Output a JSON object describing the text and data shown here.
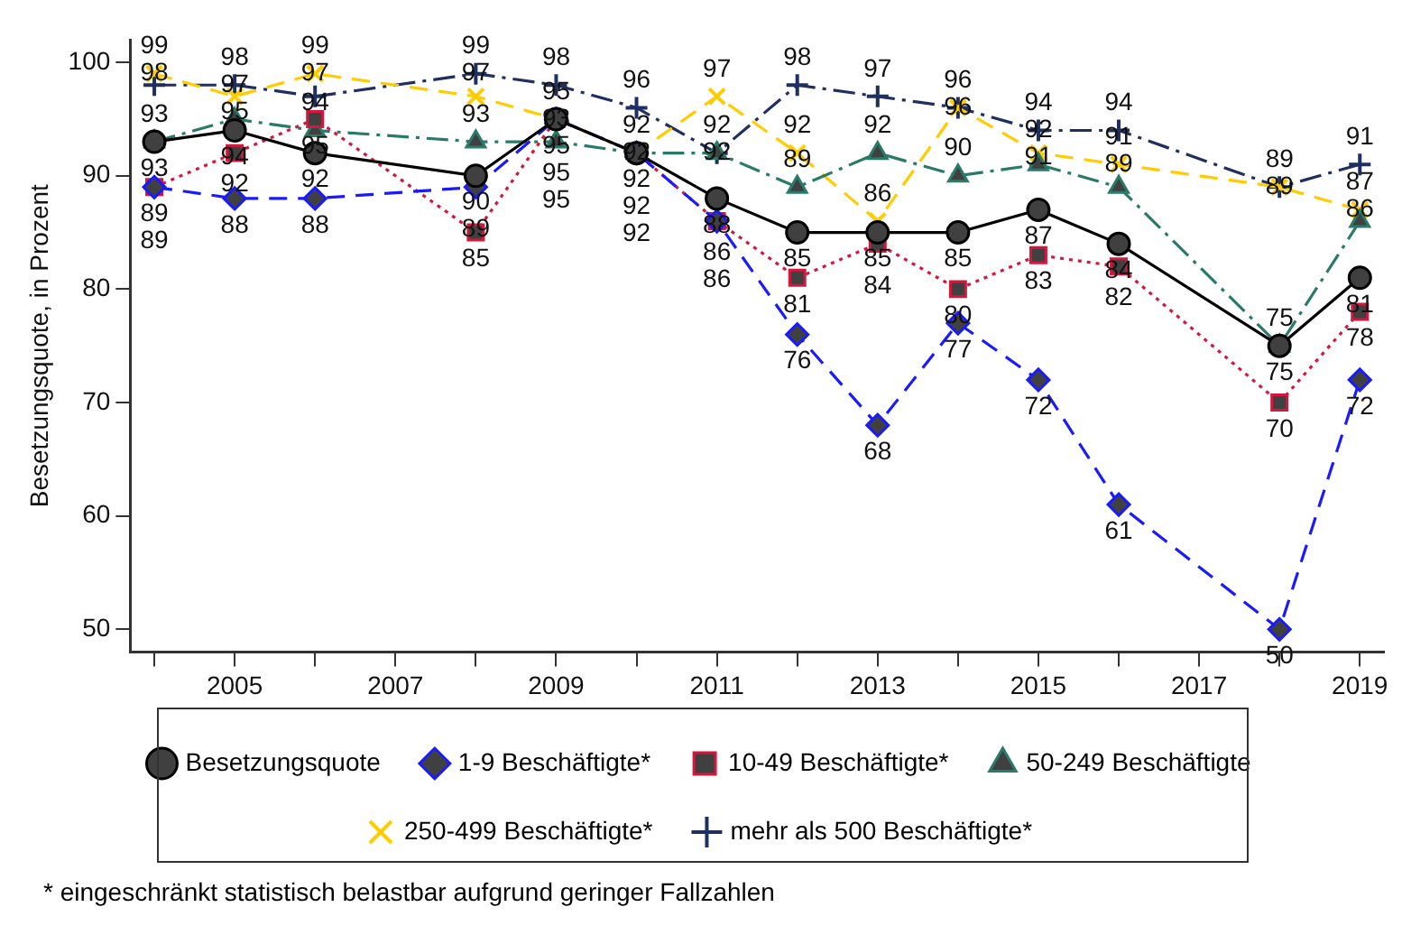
{
  "chart_data": {
    "type": "line",
    "ylabel": "Besetzungsquote, in Prozent",
    "x": [
      2004,
      2005,
      2006,
      2008,
      2009,
      2010,
      2011,
      2012,
      2013,
      2014,
      2015,
      2016,
      2018,
      2019
    ],
    "xlim": [
      2003.7,
      2019.3
    ],
    "xticks": [
      {
        "value": 2004,
        "label": null
      },
      2005,
      {
        "value": 2006,
        "label": null
      },
      2007,
      {
        "value": 2008,
        "label": null
      },
      2009,
      {
        "value": 2010,
        "label": null
      },
      2011,
      {
        "value": 2012,
        "label": null
      },
      2013,
      {
        "value": 2014,
        "label": null
      },
      2015,
      {
        "value": 2016,
        "label": null
      },
      2017,
      {
        "value": 2018,
        "label": null
      },
      2019
    ],
    "ylim": [
      48,
      102
    ],
    "yticks": [
      50,
      60,
      70,
      80,
      90,
      100
    ],
    "grid": false,
    "legend": "bottom",
    "data_labels": true,
    "series": [
      {
        "name": "Besetzungsquote",
        "color": "#000000",
        "marker": "circle",
        "line_style": "solid",
        "values": [
          93,
          94,
          92,
          90,
          95,
          92,
          88,
          85,
          85,
          85,
          87,
          84,
          75,
          81
        ]
      },
      {
        "name": "1-9 Beschäftigte*",
        "color": "#1a1aff",
        "marker": "diamond",
        "line_style": "dashed",
        "values": [
          89,
          88,
          88,
          89,
          95,
          92,
          86,
          76,
          68,
          77,
          72,
          61,
          50,
          72
        ]
      },
      {
        "name": "10-49 Beschäftigte*",
        "color": "#d6163c",
        "marker": "square",
        "line_style": "dotted",
        "values": [
          89,
          92,
          95,
          85,
          95,
          92,
          86,
          81,
          84,
          80,
          83,
          82,
          70,
          78
        ]
      },
      {
        "name": "50-249 Beschäftigte",
        "color": "#2a7a6a",
        "marker": "triangle",
        "line_style": "dashdot",
        "values": [
          93,
          95,
          94,
          93,
          93,
          92,
          92,
          89,
          92,
          90,
          91,
          89,
          75,
          86
        ]
      },
      {
        "name": "250-499 Beschäftigte*",
        "color": "#ffcc00",
        "marker": "cross",
        "line_style": "dashed",
        "values": [
          99,
          97,
          99,
          97,
          95,
          92,
          97,
          92,
          86,
          96,
          92,
          91,
          89,
          87
        ]
      },
      {
        "name": "mehr als 500 Beschäftigte*",
        "color": "#1f2f5f",
        "marker": "plus",
        "line_style": "dashdot",
        "values": [
          98,
          98,
          97,
          99,
          98,
          96,
          92,
          98,
          97,
          96,
          94,
          94,
          89,
          91
        ]
      }
    ],
    "annotations": [
      "* eingeschränkt statistisch belastbar aufgrund geringer Fallzahlen"
    ]
  }
}
